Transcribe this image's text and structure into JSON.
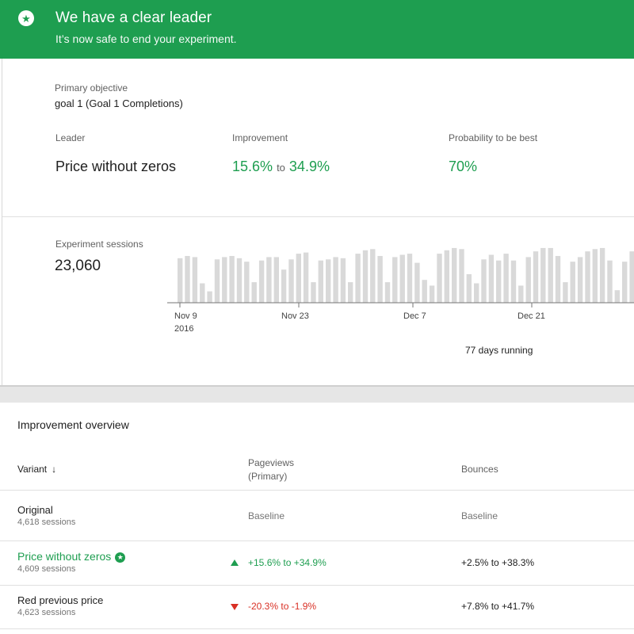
{
  "banner": {
    "icon": "star-icon",
    "title": "We have a clear leader",
    "subtitle": "It’s now safe to end your experiment.",
    "color": "#1e9e50"
  },
  "summary": {
    "objective_label": "Primary objective",
    "objective_value": "goal 1 (Goal 1 Completions)",
    "leader_label": "Leader",
    "leader_value": "Price without zeros",
    "improvement_label": "Improvement",
    "improvement_low": "15.6%",
    "improvement_to": "to",
    "improvement_high": "34.9%",
    "probability_label": "Probability to be best",
    "probability_value": "70%"
  },
  "sessions": {
    "label": "Experiment sessions",
    "total": "23,060",
    "days_running": "77 days running",
    "x_ticks": [
      {
        "label": "Nov 9",
        "sub": "2016"
      },
      {
        "label": "Nov 23",
        "sub": ""
      },
      {
        "label": "Dec 7",
        "sub": ""
      },
      {
        "label": "Dec 21",
        "sub": ""
      }
    ]
  },
  "chart_data": {
    "type": "bar",
    "title": "",
    "xlabel": "",
    "ylabel": "",
    "ylim": [
      0,
      100
    ],
    "values": [
      78,
      82,
      80,
      34,
      20,
      76,
      80,
      82,
      78,
      72,
      36,
      74,
      80,
      80,
      58,
      76,
      86,
      88,
      36,
      74,
      76,
      80,
      78,
      36,
      86,
      92,
      94,
      82,
      36,
      80,
      84,
      86,
      70,
      40,
      30,
      86,
      92,
      96,
      94,
      50,
      34,
      76,
      84,
      74,
      86,
      74,
      30,
      80,
      90,
      96,
      96,
      82,
      36,
      72,
      80,
      90,
      94,
      96,
      74,
      22,
      72,
      90,
      76,
      74,
      86
    ]
  },
  "overview": {
    "title": "Improvement overview",
    "columns": {
      "variant": "Variant",
      "pageviews": "Pageviews",
      "pageviews_sub": "(Primary)",
      "bounces": "Bounces"
    },
    "rows": [
      {
        "name": "Original",
        "sessions": "4,618 sessions",
        "pageviews": "Baseline",
        "bounces": "Baseline"
      },
      {
        "name": "Price without zeros",
        "sessions": "4,609 sessions",
        "pageviews": "+15.6% to +34.9%",
        "bounces": "+2.5% to +38.3%"
      },
      {
        "name": "Red previous price",
        "sessions": "4,623 sessions",
        "pageviews": "-20.3% to -1.9%",
        "bounces": "+7.8% to +41.7%"
      }
    ]
  }
}
